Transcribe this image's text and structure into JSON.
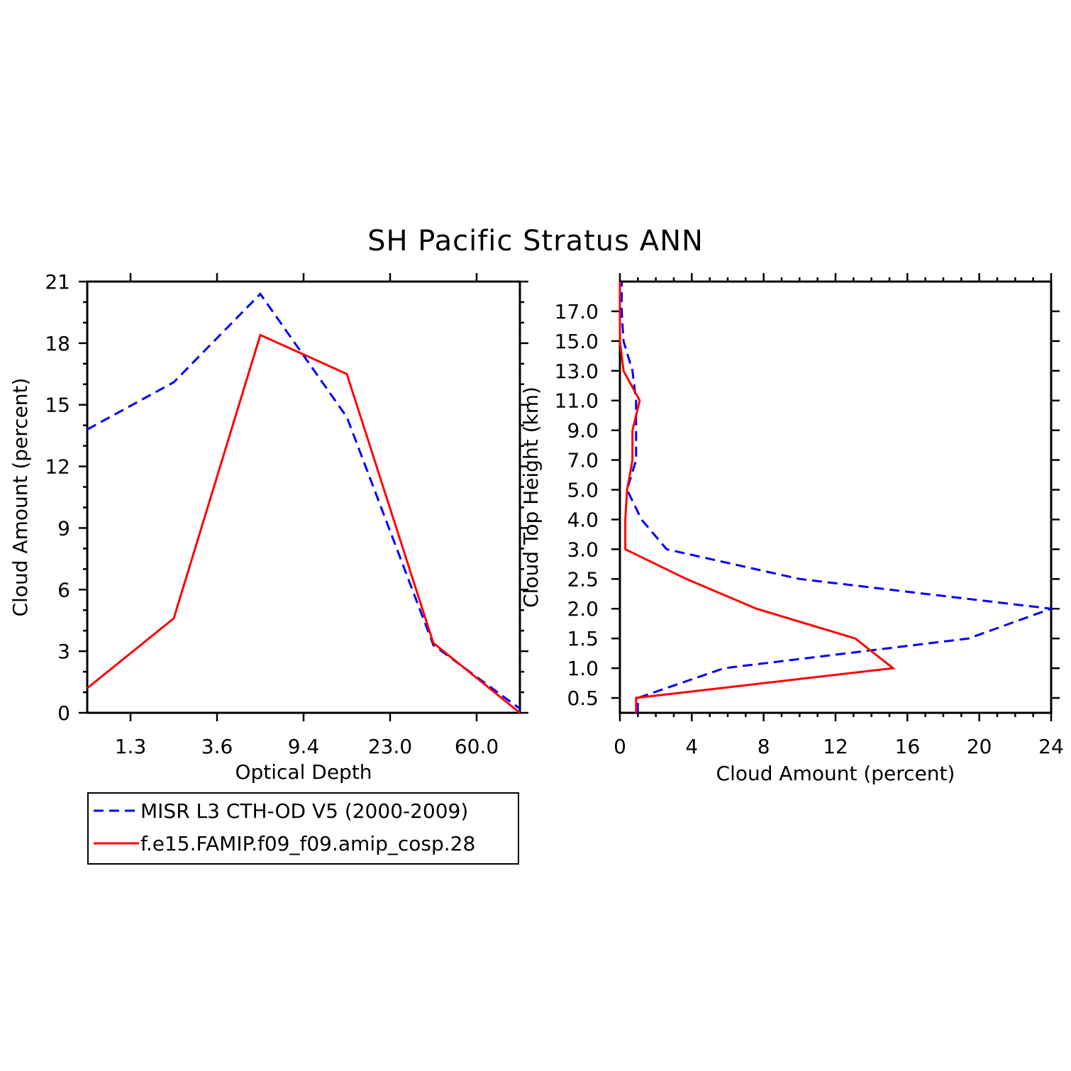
{
  "title": "SH Pacific Stratus ANN",
  "colors": {
    "obs": "#0000ff",
    "model": "#ff0000",
    "axis": "#000000"
  },
  "legend": {
    "entries": [
      {
        "label": "MISR L3 CTH-OD V5 (2000-2009)",
        "series": "obs"
      },
      {
        "label": "f.e15.FAMIP.f09_f09.amip_cosp.28",
        "series": "model"
      }
    ]
  },
  "chart_data": [
    {
      "type": "line",
      "xlabel": "Optical Depth",
      "ylabel": "Cloud Amount (percent)",
      "x_tick_labels": [
        "1.3",
        "3.6",
        "9.4",
        "23.0",
        "60.0"
      ],
      "y_ticks": [
        0,
        3,
        6,
        9,
        12,
        15,
        18,
        21
      ],
      "ylim": [
        0,
        21
      ],
      "xlim": [
        0,
        5
      ],
      "series": [
        {
          "key": "obs",
          "name": "MISR L3 CTH-OD V5 (2000-2009)",
          "style": "dashed",
          "x": [
            0,
            1,
            2,
            3,
            4,
            5
          ],
          "values": [
            13.8,
            16.1,
            20.4,
            14.4,
            3.3,
            0.2
          ]
        },
        {
          "key": "model",
          "name": "f.e15.FAMIP.f09_f09.amip_cosp.28",
          "style": "solid",
          "x": [
            0,
            1,
            2,
            3,
            4,
            5
          ],
          "values": [
            1.2,
            4.6,
            18.4,
            16.5,
            3.4,
            0.0
          ]
        }
      ]
    },
    {
      "type": "line",
      "xlabel": "Cloud Amount (percent)",
      "ylabel": "Cloud Top Height (km)",
      "x_ticks": [
        0,
        4,
        8,
        12,
        16,
        20,
        24
      ],
      "xlim": [
        0,
        24
      ],
      "y_tick_labels": [
        "0.5",
        "1.0",
        "1.5",
        "2.0",
        "2.5",
        "3.0",
        "4.0",
        "5.0",
        "7.0",
        "9.0",
        "11.0",
        "13.0",
        "15.0",
        "17.0"
      ],
      "series": [
        {
          "key": "obs",
          "name": "MISR L3 CTH-OD V5 (2000-2009)",
          "style": "dashed",
          "height_index": [
            0,
            1,
            2,
            3,
            4,
            5,
            6,
            7,
            8,
            9,
            10,
            11,
            12,
            13
          ],
          "values": [
            1.0,
            5.8,
            19.4,
            24.0,
            10.0,
            2.6,
            1.2,
            0.4,
            0.9,
            0.9,
            0.9,
            0.7,
            0.2,
            0.1
          ]
        },
        {
          "key": "model",
          "name": "f.e15.FAMIP.f09_f09.amip_cosp.28",
          "style": "solid",
          "height_index": [
            0,
            1,
            2,
            3,
            4,
            5,
            6,
            7,
            8,
            9,
            10,
            11,
            12,
            13
          ],
          "values": [
            0.9,
            15.2,
            13.1,
            7.6,
            3.7,
            0.3,
            0.3,
            0.4,
            0.7,
            0.7,
            1.1,
            0.2,
            0.0,
            0.0
          ]
        }
      ]
    }
  ]
}
